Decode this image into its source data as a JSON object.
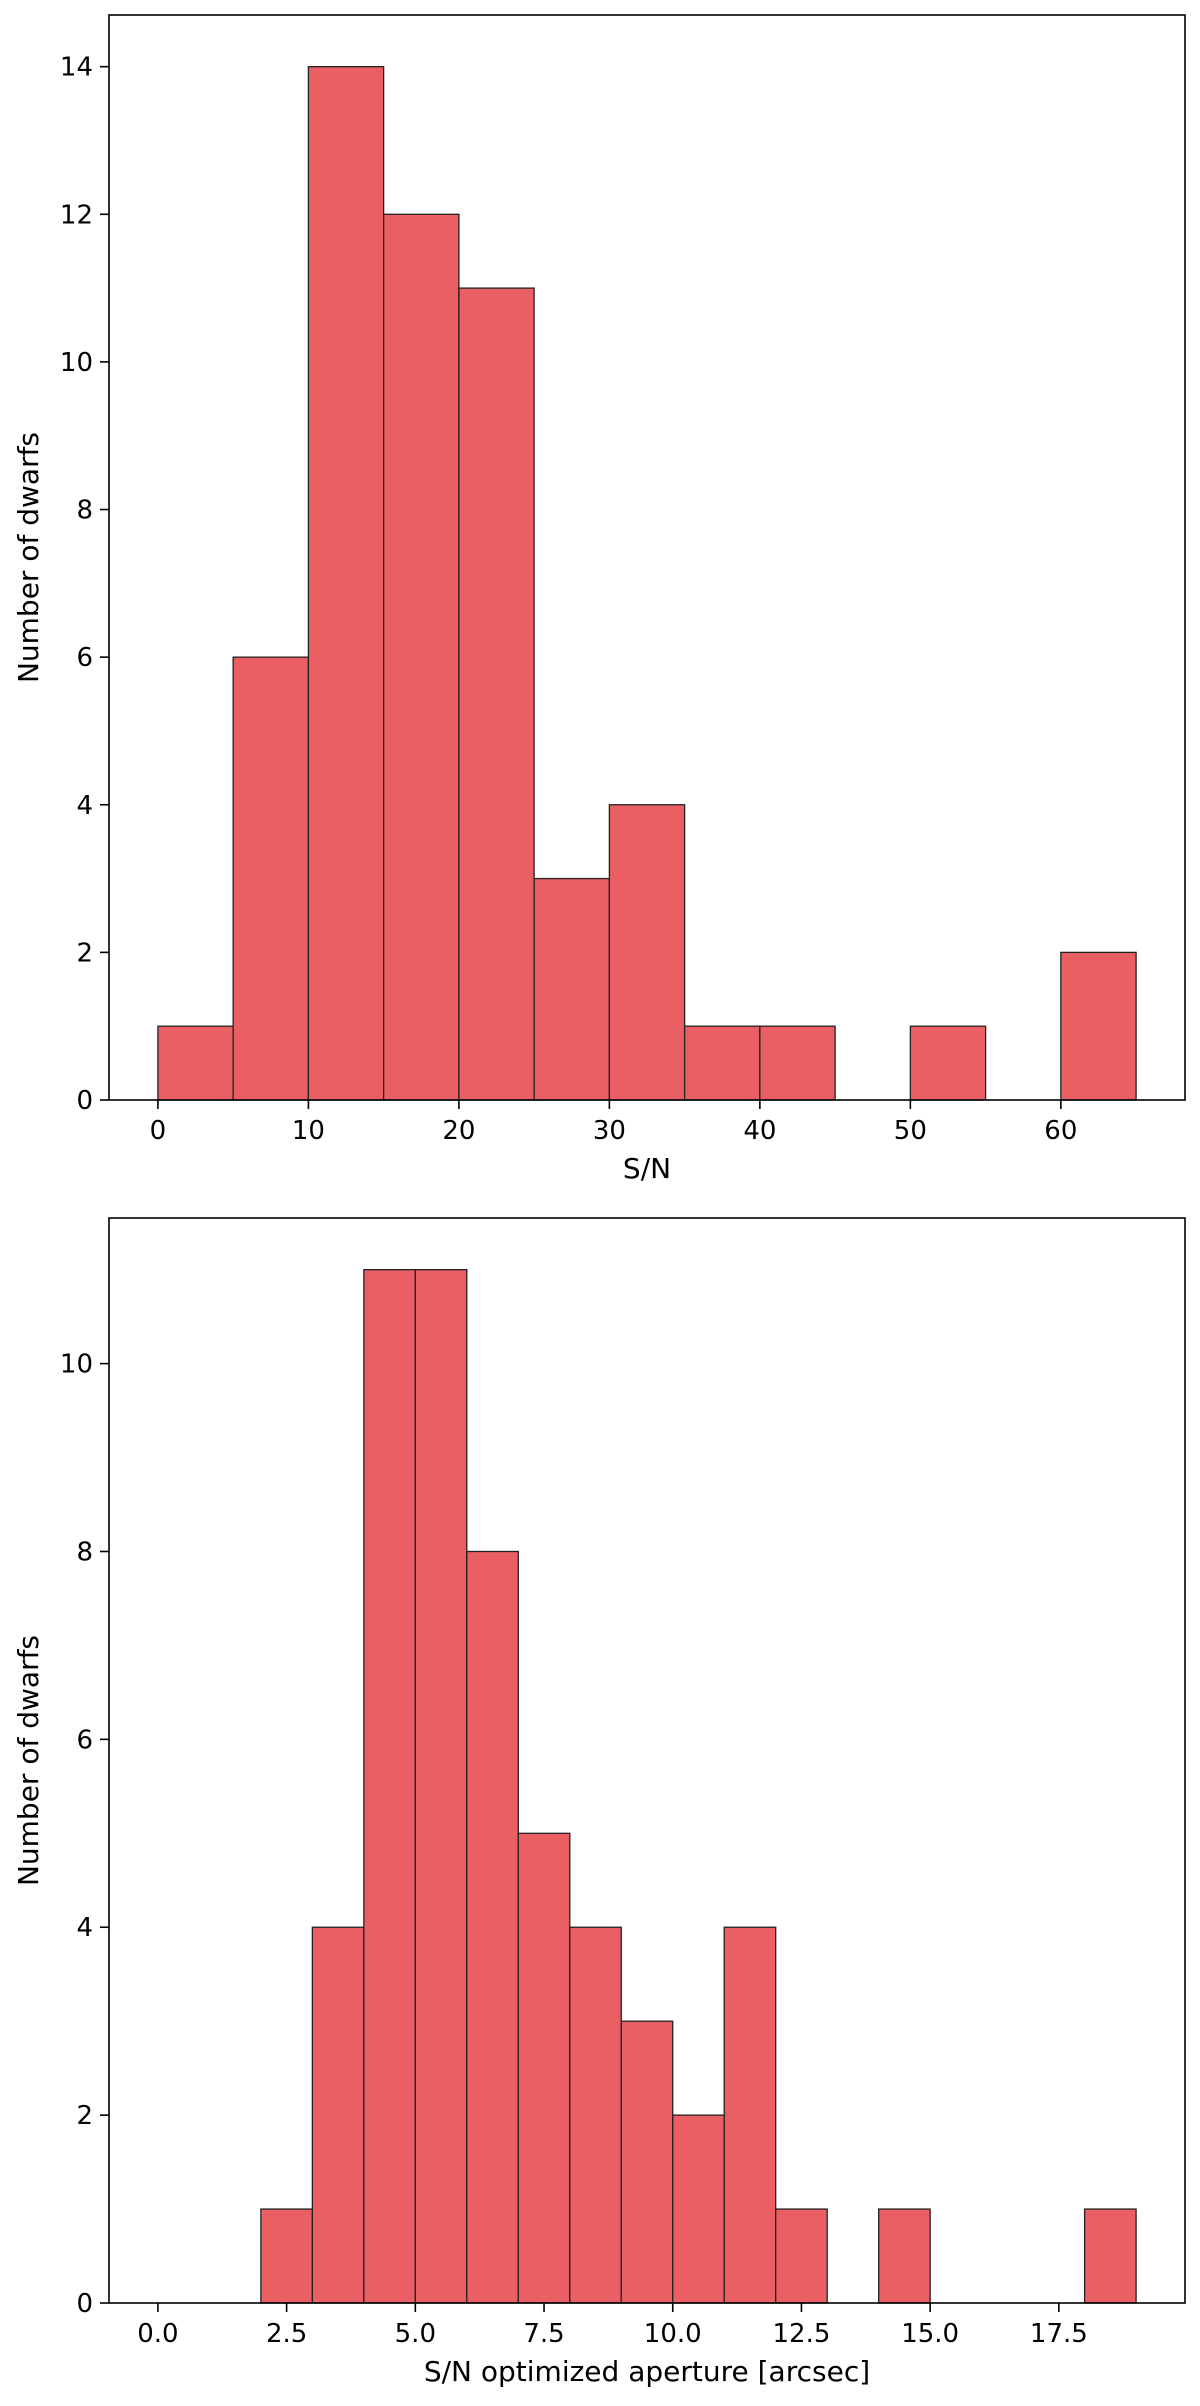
{
  "colors": {
    "bar_fill": "#ea5f63",
    "bar_edge": "#222222",
    "axes": "#000000",
    "background": "#ffffff"
  },
  "chart_data": [
    {
      "type": "bar",
      "subtype": "histogram",
      "xlabel": "S/N",
      "ylabel": "Number of dwarfs",
      "xlim": [
        -3.25,
        68.25
      ],
      "ylim": [
        0,
        14.7
      ],
      "xticks": [
        0,
        10,
        20,
        30,
        40,
        50,
        60
      ],
      "xtick_labels": [
        "0",
        "10",
        "20",
        "30",
        "40",
        "50",
        "60"
      ],
      "yticks": [
        0,
        2,
        4,
        6,
        8,
        10,
        12,
        14
      ],
      "ytick_labels": [
        "0",
        "2",
        "4",
        "6",
        "8",
        "10",
        "12",
        "14"
      ],
      "bin_edges": [
        0,
        5,
        10,
        15,
        20,
        25,
        30,
        35,
        40,
        45,
        50,
        55,
        60,
        65
      ],
      "values": [
        1,
        6,
        14,
        12,
        11,
        3,
        4,
        1,
        1,
        0,
        1,
        0,
        2
      ],
      "grid": false,
      "legend": "none"
    },
    {
      "type": "bar",
      "subtype": "histogram",
      "xlabel": "S/N optimized aperture [arcsec]",
      "ylabel": "Number of dwarfs",
      "xlim": [
        -0.95,
        19.95
      ],
      "ylim": [
        0,
        11.55
      ],
      "xticks": [
        0,
        2.5,
        5,
        7.5,
        10,
        12.5,
        15,
        17.5
      ],
      "xtick_labels": [
        "0.0",
        "2.5",
        "5.0",
        "7.5",
        "10.0",
        "12.5",
        "15.0",
        "17.5"
      ],
      "yticks": [
        0,
        2,
        4,
        6,
        8,
        10
      ],
      "ytick_labels": [
        "0",
        "2",
        "4",
        "6",
        "8",
        "10"
      ],
      "bin_edges": [
        0,
        1,
        2,
        3,
        4,
        5,
        6,
        7,
        8,
        9,
        10,
        11,
        12,
        13,
        14,
        15,
        16,
        17,
        18,
        19
      ],
      "values": [
        0,
        0,
        1,
        4,
        11,
        11,
        8,
        5,
        4,
        3,
        2,
        4,
        1,
        0,
        1,
        0,
        0,
        0,
        1
      ],
      "grid": false,
      "legend": "none"
    }
  ]
}
